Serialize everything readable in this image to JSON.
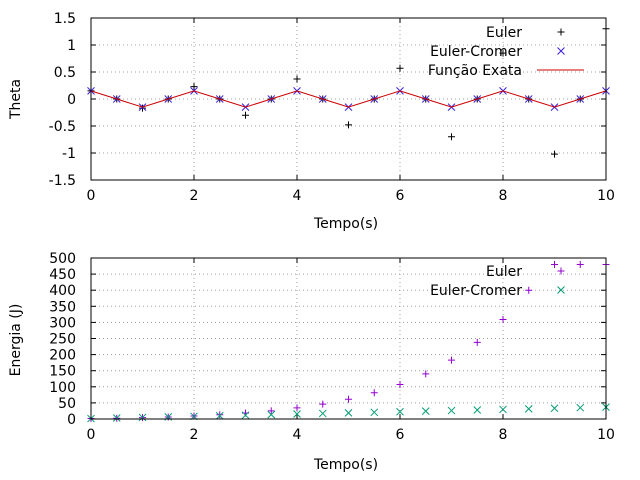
{
  "chart_data": [
    {
      "type": "scatter",
      "xlabel": "Tempo(s)",
      "ylabel": "Theta",
      "xlim": [
        0,
        10
      ],
      "ylim": [
        -1.5,
        1.5
      ],
      "xticks": [
        "0",
        "2",
        "4",
        "6",
        "8",
        "10"
      ],
      "yticks": [
        "1.5",
        "1",
        "0.5",
        "0",
        "-0.5",
        "-1",
        "-1.5"
      ],
      "grid": true,
      "legend_position": "top-right",
      "series": [
        {
          "name": "Euler",
          "marker": "plus",
          "color": "#000000",
          "x": [
            0,
            0.5,
            1,
            1.5,
            2,
            2.5,
            3,
            3.5,
            4,
            4.5,
            5,
            5.5,
            6,
            6.5,
            7,
            7.5,
            8,
            8.5,
            9,
            9.5,
            10
          ],
          "y": [
            0.15,
            0.0,
            -0.17,
            0.0,
            0.23,
            0.0,
            -0.3,
            0.0,
            0.37,
            0.0,
            -0.48,
            0.0,
            0.57,
            0.0,
            -0.7,
            0.0,
            0.85,
            0.0,
            -1.02,
            0.0,
            1.3
          ]
        },
        {
          "name": "Euler-Cromer",
          "marker": "cross",
          "color": "#3b1fe0",
          "x": [
            0,
            0.5,
            1,
            1.5,
            2,
            2.5,
            3,
            3.5,
            4,
            4.5,
            5,
            5.5,
            6,
            6.5,
            7,
            7.5,
            8,
            8.5,
            9,
            9.5,
            10
          ],
          "y": [
            0.15,
            0.0,
            -0.15,
            0.0,
            0.15,
            0.0,
            -0.15,
            0.0,
            0.15,
            0.0,
            -0.15,
            0.0,
            0.15,
            0.0,
            -0.15,
            0.0,
            0.15,
            0.0,
            -0.15,
            0.0,
            0.15
          ]
        },
        {
          "name": "Função Exata",
          "marker": "line",
          "color": "#cc0000",
          "x": [
            0,
            0.5,
            1,
            1.5,
            2,
            2.5,
            3,
            3.5,
            4,
            4.5,
            5,
            5.5,
            6,
            6.5,
            7,
            7.5,
            8,
            8.5,
            9,
            9.5,
            10
          ],
          "y": [
            0.15,
            0.0,
            -0.15,
            0.0,
            0.15,
            0.0,
            -0.15,
            0.0,
            0.15,
            0.0,
            -0.15,
            0.0,
            0.15,
            0.0,
            -0.15,
            0.0,
            0.15,
            0.0,
            -0.15,
            0.0,
            0.15
          ]
        }
      ]
    },
    {
      "type": "scatter",
      "xlabel": "Tempo(s)",
      "ylabel": "Energia (J)",
      "xlim": [
        0,
        10
      ],
      "ylim": [
        0,
        500
      ],
      "xticks": [
        "0",
        "2",
        "4",
        "6",
        "8",
        "10"
      ],
      "yticks": [
        "500",
        "450",
        "400",
        "350",
        "300",
        "250",
        "200",
        "150",
        "100",
        "50",
        "0"
      ],
      "grid": true,
      "legend_position": "top-right",
      "series": [
        {
          "name": "Euler",
          "marker": "plus",
          "color": "#9400d3",
          "x": [
            0,
            0.5,
            1,
            1.5,
            2,
            2.5,
            3,
            3.5,
            4,
            4.5,
            5,
            5.5,
            6,
            6.5,
            7,
            7.5,
            8,
            8.5,
            9,
            9.5,
            10
          ],
          "y": [
            1.4,
            2.5,
            4.1,
            6.3,
            9.3,
            13.3,
            18.5,
            25.4,
            34.4,
            46.2,
            61.5,
            81.4,
            107,
            140,
            183,
            238,
            309,
            400,
            480,
            480,
            480
          ]
        },
        {
          "name": "Euler-Cromer",
          "marker": "cross",
          "color": "#009e73",
          "x": [
            0,
            0.5,
            1,
            1.5,
            2,
            2.5,
            3,
            3.5,
            4,
            4.5,
            5,
            5.5,
            6,
            6.5,
            7,
            7.5,
            8,
            8.5,
            9,
            9.5,
            10
          ],
          "y": [
            1.4,
            3.1,
            4.9,
            6.6,
            8.4,
            10.2,
            11.9,
            13.7,
            15.5,
            17.3,
            19.1,
            20.8,
            22.6,
            24.4,
            26.2,
            28.0,
            29.7,
            31.5,
            33.3,
            35.1,
            37.0
          ]
        }
      ]
    }
  ]
}
